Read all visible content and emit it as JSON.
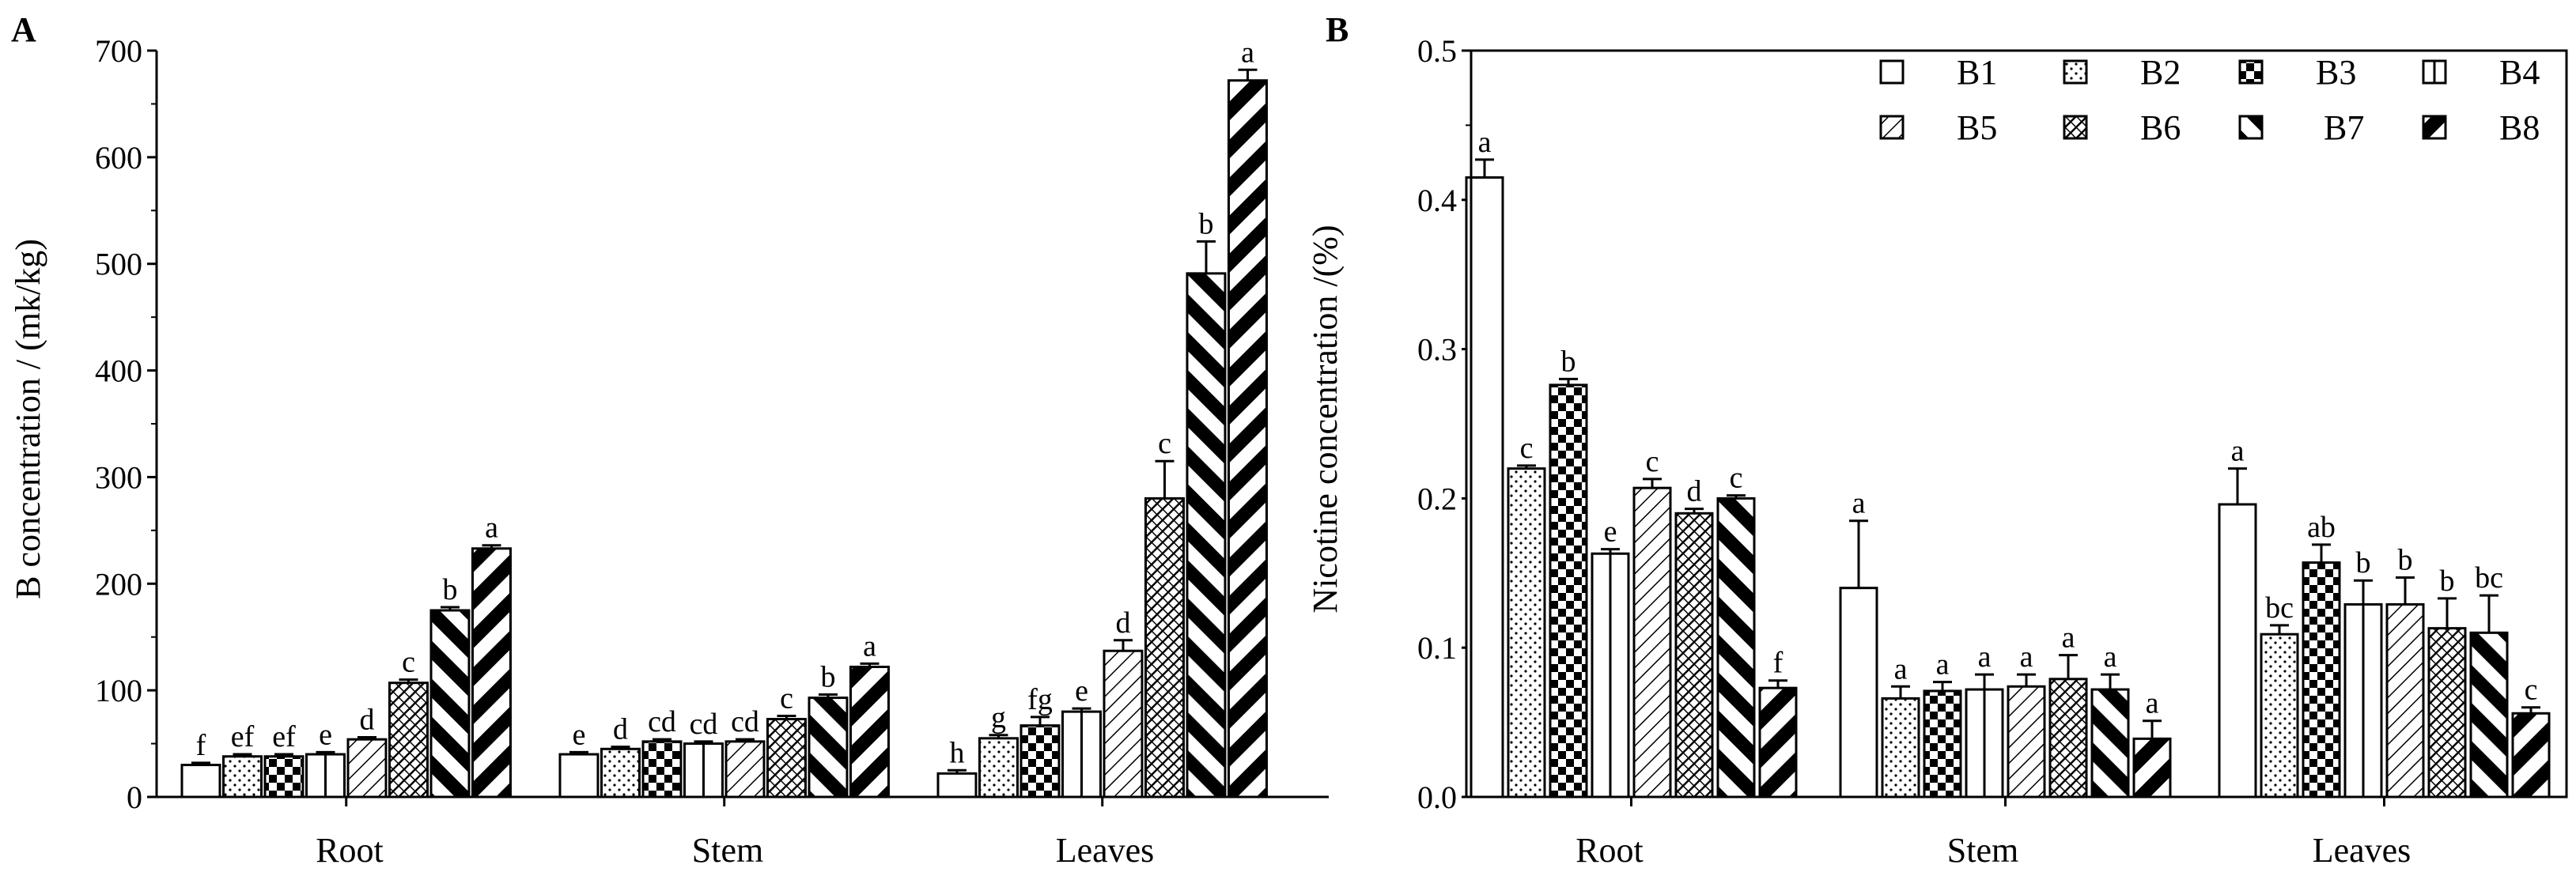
{
  "series_names": [
    "B1",
    "B2",
    "B3",
    "B4",
    "B5",
    "B6",
    "B7",
    "B8"
  ],
  "chart_data": [
    {
      "panel": "A",
      "type": "bar",
      "title": "",
      "xlabel": "",
      "ylabel": "B concentration / (mk/kg)",
      "categories": [
        "Root",
        "Stem",
        "Leaves"
      ],
      "ylim": [
        0,
        700
      ],
      "yticks": [
        "0",
        "100",
        "200",
        "300",
        "400",
        "500",
        "600",
        "700"
      ],
      "grid": false,
      "legend": "none",
      "series": [
        {
          "name": "B1",
          "values": [
            30,
            40,
            22
          ],
          "errors": [
            2,
            2,
            3
          ],
          "letters": [
            "f",
            "e",
            "h"
          ]
        },
        {
          "name": "B2",
          "values": [
            38,
            45,
            55
          ],
          "errors": [
            2,
            2,
            3
          ],
          "letters": [
            "ef",
            "d",
            "g"
          ]
        },
        {
          "name": "B3",
          "values": [
            38,
            52,
            67
          ],
          "errors": [
            2,
            2,
            8
          ],
          "letters": [
            "ef",
            "cd",
            "fg"
          ]
        },
        {
          "name": "B4",
          "values": [
            40,
            50,
            80
          ],
          "errors": [
            2,
            2,
            3
          ],
          "letters": [
            "e",
            "cd",
            "e"
          ]
        },
        {
          "name": "B5",
          "values": [
            54,
            52,
            137
          ],
          "errors": [
            2,
            2,
            10
          ],
          "letters": [
            "d",
            "cd",
            "d"
          ]
        },
        {
          "name": "B6",
          "values": [
            107,
            73,
            280
          ],
          "errors": [
            3,
            3,
            35
          ],
          "letters": [
            "c",
            "c",
            "c"
          ]
        },
        {
          "name": "B7",
          "values": [
            175,
            93,
            491
          ],
          "errors": [
            3,
            3,
            30
          ],
          "letters": [
            "b",
            "b",
            "b"
          ]
        },
        {
          "name": "B8",
          "values": [
            233,
            122,
            672
          ],
          "errors": [
            3,
            3,
            10
          ],
          "letters": [
            "a",
            "a",
            "a"
          ]
        }
      ]
    },
    {
      "panel": "B",
      "type": "bar",
      "title": "",
      "xlabel": "",
      "ylabel": "Nicotine concentration /(%)",
      "categories": [
        "Root",
        "Stem",
        "Leaves"
      ],
      "ylim": [
        0,
        0.5
      ],
      "yticks": [
        "0.0",
        "0.1",
        "0.2",
        "0.3",
        "0.4",
        "0.5"
      ],
      "grid": false,
      "legend": "top-right",
      "series": [
        {
          "name": "B1",
          "values": [
            0.415,
            0.14,
            0.196
          ],
          "errors": [
            0.012,
            0.045,
            0.024
          ],
          "letters": [
            "a",
            "a",
            "a"
          ]
        },
        {
          "name": "B2",
          "values": [
            0.22,
            0.066,
            0.109
          ],
          "errors": [
            0.002,
            0.008,
            0.006
          ],
          "letters": [
            "c",
            "a",
            "bc"
          ]
        },
        {
          "name": "B3",
          "values": [
            0.276,
            0.071,
            0.157
          ],
          "errors": [
            0.004,
            0.006,
            0.012
          ],
          "letters": [
            "b",
            "a",
            "ab"
          ]
        },
        {
          "name": "B4",
          "values": [
            0.163,
            0.072,
            0.129
          ],
          "errors": [
            0.003,
            0.01,
            0.016
          ],
          "letters": [
            "e",
            "a",
            "b"
          ]
        },
        {
          "name": "B5",
          "values": [
            0.207,
            0.074,
            0.129
          ],
          "errors": [
            0.006,
            0.008,
            0.018
          ],
          "letters": [
            "c",
            "a",
            "b"
          ]
        },
        {
          "name": "B6",
          "values": [
            0.19,
            0.079,
            0.113
          ],
          "errors": [
            0.003,
            0.016,
            0.02
          ],
          "letters": [
            "d",
            "a",
            "b"
          ]
        },
        {
          "name": "B7",
          "values": [
            0.2,
            0.072,
            0.11
          ],
          "errors": [
            0.002,
            0.01,
            0.025
          ],
          "letters": [
            "c",
            "a",
            "bc"
          ]
        },
        {
          "name": "B8",
          "values": [
            0.073,
            0.039,
            0.056
          ],
          "errors": [
            0.005,
            0.012,
            0.004
          ],
          "letters": [
            "f",
            "a",
            "c"
          ]
        }
      ]
    }
  ]
}
